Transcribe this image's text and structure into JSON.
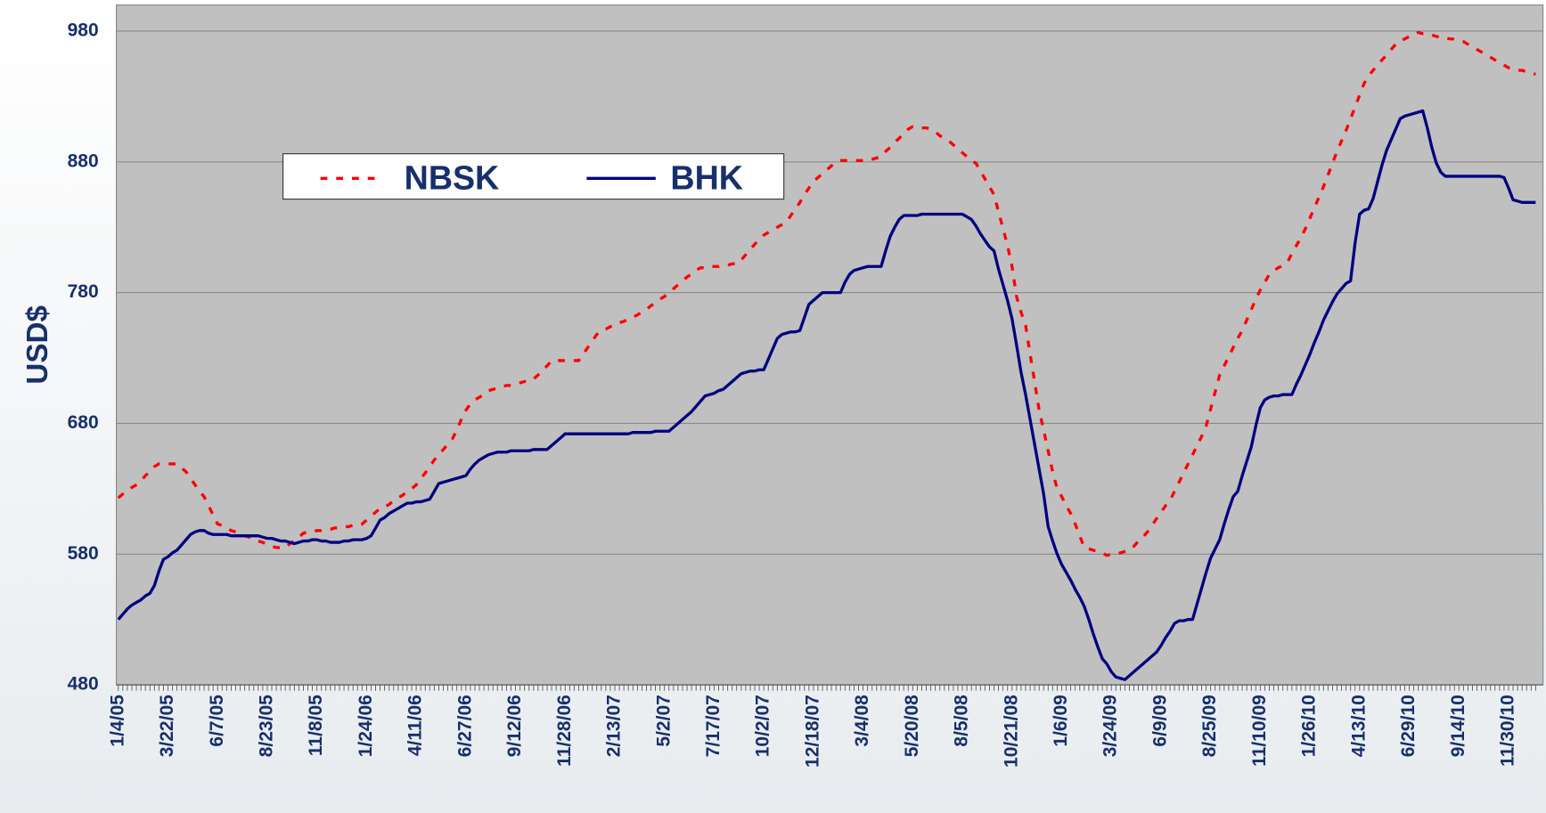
{
  "chart_data": {
    "type": "line",
    "ylabel": "USD$",
    "ylim": [
      480,
      1000
    ],
    "yticks": [
      480,
      580,
      680,
      780,
      880,
      980
    ],
    "grid": true,
    "legend": "top-left",
    "categories": [
      "1/4/05",
      null,
      null,
      null,
      null,
      null,
      null,
      null,
      null,
      null,
      null,
      "3/22/05",
      null,
      null,
      null,
      null,
      null,
      null,
      null,
      null,
      null,
      null,
      "6/7/05",
      null,
      null,
      null,
      null,
      null,
      null,
      null,
      null,
      null,
      null,
      "8/23/05",
      null,
      null,
      null,
      null,
      null,
      null,
      null,
      null,
      null,
      null,
      "11/8/05",
      null,
      null,
      null,
      null,
      null,
      null,
      null,
      null,
      null,
      null,
      "1/24/06",
      null,
      null,
      null,
      null,
      null,
      null,
      null,
      null,
      null,
      null,
      "4/11/06",
      null,
      null,
      null,
      null,
      null,
      null,
      null,
      null,
      null,
      null,
      "6/27/06",
      null,
      null,
      null,
      null,
      null,
      null,
      null,
      null,
      null,
      null,
      "9/12/06",
      null,
      null,
      null,
      null,
      null,
      null,
      null,
      null,
      null,
      null,
      "11/28/06",
      null,
      null,
      null,
      null,
      null,
      null,
      null,
      null,
      null,
      null,
      "2/13/07",
      null,
      null,
      null,
      null,
      null,
      null,
      null,
      null,
      null,
      null,
      "5/2/07",
      null,
      null,
      null,
      null,
      null,
      null,
      null,
      null,
      null,
      null,
      "7/17/07",
      null,
      null,
      null,
      null,
      null,
      null,
      null,
      null,
      null,
      null,
      "10/2/07",
      null,
      null,
      null,
      null,
      null,
      null,
      null,
      null,
      null,
      null,
      "12/18/07",
      null,
      null,
      null,
      null,
      null,
      null,
      null,
      null,
      null,
      null,
      "3/4/08",
      null,
      null,
      null,
      null,
      null,
      null,
      null,
      null,
      null,
      null,
      "5/20/08",
      null,
      null,
      null,
      null,
      null,
      null,
      null,
      null,
      null,
      null,
      "8/5/08",
      null,
      null,
      null,
      null,
      null,
      null,
      null,
      null,
      null,
      null,
      "10/21/08",
      null,
      null,
      null,
      null,
      null,
      null,
      null,
      null,
      null,
      null,
      "1/6/09",
      null,
      null,
      null,
      null,
      null,
      null,
      null,
      null,
      null,
      null,
      "3/24/09",
      null,
      null,
      null,
      null,
      null,
      null,
      null,
      null,
      null,
      null,
      "6/9/09",
      null,
      null,
      null,
      null,
      null,
      null,
      null,
      null,
      null,
      null,
      "8/25/09",
      null,
      null,
      null,
      null,
      null,
      null,
      null,
      null,
      null,
      null,
      "11/10/09",
      null,
      null,
      null,
      null,
      null,
      null,
      null,
      null,
      null,
      null,
      "1/26/10",
      null,
      null,
      null,
      null,
      null,
      null,
      null,
      null,
      null,
      null,
      "4/13/10",
      null,
      null,
      null,
      null,
      null,
      null,
      null,
      null,
      null,
      null,
      "6/29/10",
      null,
      null,
      null,
      null,
      null,
      null,
      null,
      null,
      null,
      null,
      "9/14/10",
      null,
      null,
      null,
      null,
      null,
      null,
      null,
      null,
      null,
      null,
      "11/30/10",
      null,
      null,
      null,
      null,
      null,
      null
    ],
    "series": [
      {
        "name": "NBSK",
        "color": "#ff0000",
        "dash": true,
        "values": [
          623,
          626,
          628,
          631,
          633,
          636,
          640,
          643,
          647,
          649,
          649,
          649,
          649,
          649,
          646,
          643,
          638,
          633,
          628,
          624,
          617,
          610,
          603,
          602,
          600,
          598,
          597,
          596,
          594,
          593,
          592,
          590,
          589,
          587,
          586,
          585,
          585,
          585,
          588,
          590,
          593,
          596,
          597,
          597,
          598,
          598,
          599,
          599,
          600,
          600,
          601,
          601,
          602,
          602,
          603,
          606,
          609,
          612,
          615,
          616,
          618,
          621,
          623,
          625,
          628,
          630,
          633,
          638,
          642,
          647,
          652,
          656,
          660,
          664,
          668,
          675,
          683,
          690,
          695,
          698,
          700,
          702,
          705,
          706,
          707,
          708,
          709,
          709,
          710,
          711,
          712,
          712,
          714,
          717,
          721,
          724,
          728,
          728,
          728,
          728,
          728,
          728,
          728,
          733,
          738,
          743,
          748,
          751,
          752,
          754,
          755,
          757,
          758,
          760,
          761,
          763,
          765,
          767,
          770,
          772,
          775,
          777,
          780,
          783,
          786,
          789,
          792,
          794,
          797,
          799,
          799,
          800,
          800,
          800,
          801,
          801,
          802,
          802,
          805,
          809,
          813,
          817,
          821,
          824,
          826,
          828,
          830,
          832,
          834,
          839,
          844,
          849,
          855,
          860,
          865,
          868,
          871,
          874,
          877,
          880,
          881,
          881,
          881,
          881,
          881,
          881,
          881,
          882,
          883,
          884,
          888,
          891,
          895,
          898,
          902,
          905,
          907,
          907,
          906,
          906,
          905,
          903,
          900,
          898,
          896,
          893,
          890,
          887,
          884,
          881,
          879,
          873,
          867,
          861,
          855,
          842,
          829,
          816,
          800,
          777,
          765,
          755,
          733,
          712,
          690,
          675,
          659,
          643,
          630,
          624,
          617,
          611,
          603,
          594,
          585,
          584,
          583,
          582,
          581,
          579,
          580,
          580,
          581,
          582,
          583,
          586,
          590,
          593,
          597,
          602,
          607,
          612,
          617,
          621,
          628,
          635,
          642,
          649,
          656,
          663,
          670,
          678,
          691,
          704,
          717,
          724,
          731,
          738,
          745,
          751,
          759,
          767,
          775,
          782,
          788,
          794,
          797,
          799,
          801,
          803,
          810,
          816,
          822,
          829,
          837,
          845,
          853,
          861,
          870,
          879,
          888,
          896,
          904,
          913,
          922,
          931,
          940,
          946,
          950,
          955,
          958,
          962,
          966,
          970,
          973,
          974,
          976,
          977,
          979,
          978,
          978,
          977,
          976,
          975,
          975,
          974,
          974,
          973,
          972,
          970,
          968,
          966,
          964,
          962,
          960,
          958,
          956,
          954,
          952,
          951,
          950,
          950,
          949,
          948,
          947
        ]
      },
      {
        "name": "BHK",
        "color": "#000080",
        "dash": false,
        "values": [
          530,
          534,
          538,
          541,
          543,
          545,
          548,
          550,
          556,
          567,
          576,
          578,
          581,
          583,
          587,
          591,
          595,
          597,
          598,
          598,
          596,
          595,
          595,
          595,
          595,
          594,
          594,
          594,
          594,
          594,
          594,
          594,
          593,
          592,
          592,
          591,
          590,
          590,
          589,
          588,
          589,
          590,
          590,
          591,
          591,
          590,
          590,
          589,
          589,
          589,
          590,
          590,
          591,
          591,
          591,
          592,
          594,
          600,
          606,
          608,
          611,
          613,
          615,
          617,
          619,
          619,
          620,
          620,
          621,
          622,
          628,
          634,
          635,
          636,
          637,
          638,
          639,
          640,
          645,
          649,
          652,
          654,
          656,
          657,
          658,
          658,
          658,
          659,
          659,
          659,
          659,
          659,
          660,
          660,
          660,
          660,
          663,
          666,
          669,
          672,
          672,
          672,
          672,
          672,
          672,
          672,
          672,
          672,
          672,
          672,
          672,
          672,
          672,
          672,
          673,
          673,
          673,
          673,
          673,
          674,
          674,
          674,
          674,
          677,
          680,
          683,
          686,
          689,
          693,
          697,
          701,
          702,
          703,
          705,
          706,
          709,
          712,
          715,
          718,
          719,
          720,
          720,
          721,
          721,
          729,
          737,
          745,
          748,
          749,
          750,
          750,
          751,
          761,
          771,
          774,
          777,
          780,
          780,
          780,
          780,
          780,
          788,
          794,
          797,
          798,
          799,
          800,
          800,
          800,
          800,
          812,
          823,
          830,
          836,
          839,
          839,
          839,
          839,
          840,
          840,
          840,
          840,
          840,
          840,
          840,
          840,
          840,
          840,
          838,
          836,
          831,
          825,
          820,
          815,
          812,
          798,
          786,
          774,
          760,
          740,
          719,
          702,
          683,
          664,
          645,
          626,
          601,
          590,
          580,
          572,
          566,
          560,
          553,
          547,
          540,
          530,
          519,
          509,
          500,
          496,
          490,
          486,
          485,
          484,
          487,
          490,
          493,
          496,
          499,
          502,
          505,
          510,
          516,
          521,
          527,
          529,
          529,
          530,
          530,
          542,
          554,
          566,
          577,
          584,
          591,
          603,
          614,
          624,
          628,
          640,
          651,
          662,
          678,
          692,
          698,
          700,
          701,
          701,
          702,
          702,
          702,
          710,
          717,
          725,
          733,
          742,
          750,
          759,
          766,
          773,
          779,
          783,
          787,
          789,
          818,
          840,
          843,
          844,
          852,
          865,
          878,
          889,
          897,
          905,
          913,
          915,
          916,
          917,
          918,
          919,
          906,
          891,
          879,
          872,
          869,
          869,
          869,
          869,
          869,
          869,
          869,
          869,
          869,
          869,
          869,
          869,
          869,
          868,
          860,
          851,
          850,
          849,
          849,
          849,
          849
        ]
      }
    ]
  }
}
